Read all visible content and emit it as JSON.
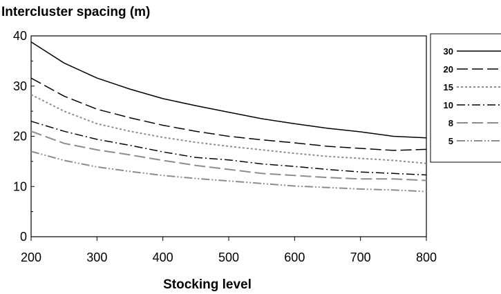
{
  "chart_data": {
    "type": "line",
    "title": "Intercluster spacing (m)",
    "xlabel": "Stocking level",
    "ylabel": "",
    "xlim": [
      200,
      800
    ],
    "ylim": [
      0,
      40
    ],
    "x": [
      200,
      250,
      300,
      350,
      400,
      450,
      500,
      550,
      600,
      650,
      700,
      750,
      800
    ],
    "x_ticks": [
      "200",
      "300",
      "400",
      "500",
      "600",
      "700",
      "800"
    ],
    "y_ticks": [
      "0",
      "10",
      "20",
      "30",
      "40"
    ],
    "grid": false,
    "legend_position": "right",
    "series": [
      {
        "name": "30",
        "color": "#000000",
        "dash": "solid",
        "values": [
          38.8,
          34.6,
          31.6,
          29.4,
          27.5,
          26.1,
          24.8,
          23.5,
          22.5,
          21.6,
          20.9,
          20.0,
          19.7
        ]
      },
      {
        "name": "20",
        "color": "#000000",
        "dash": "long-dash",
        "values": [
          31.6,
          28.0,
          25.4,
          23.7,
          22.2,
          21.0,
          20.0,
          19.3,
          18.7,
          18.0,
          17.6,
          17.2,
          17.4
        ]
      },
      {
        "name": "15",
        "color": "#8c8c8c",
        "dash": "dotted",
        "values": [
          28.3,
          25.0,
          22.5,
          21.0,
          19.8,
          18.8,
          18.0,
          17.3,
          16.6,
          16.0,
          15.6,
          15.2,
          14.6
        ]
      },
      {
        "name": "10",
        "color": "#000000",
        "dash": "dash-dot",
        "values": [
          23.0,
          21.0,
          19.4,
          18.2,
          16.9,
          15.8,
          15.3,
          14.5,
          14.0,
          13.4,
          12.9,
          12.6,
          12.3
        ]
      },
      {
        "name": "8",
        "color": "#8c8c8c",
        "dash": "long-dash",
        "values": [
          21.0,
          18.6,
          17.3,
          16.3,
          15.2,
          14.2,
          13.4,
          12.6,
          12.2,
          11.8,
          11.5,
          11.5,
          11.2
        ]
      },
      {
        "name": "5",
        "color": "#8c8c8c",
        "dash": "dash-dot-dot",
        "values": [
          17.0,
          15.2,
          13.9,
          13.0,
          12.2,
          11.6,
          11.1,
          10.6,
          10.1,
          9.8,
          9.5,
          9.3,
          9.0
        ]
      }
    ]
  }
}
